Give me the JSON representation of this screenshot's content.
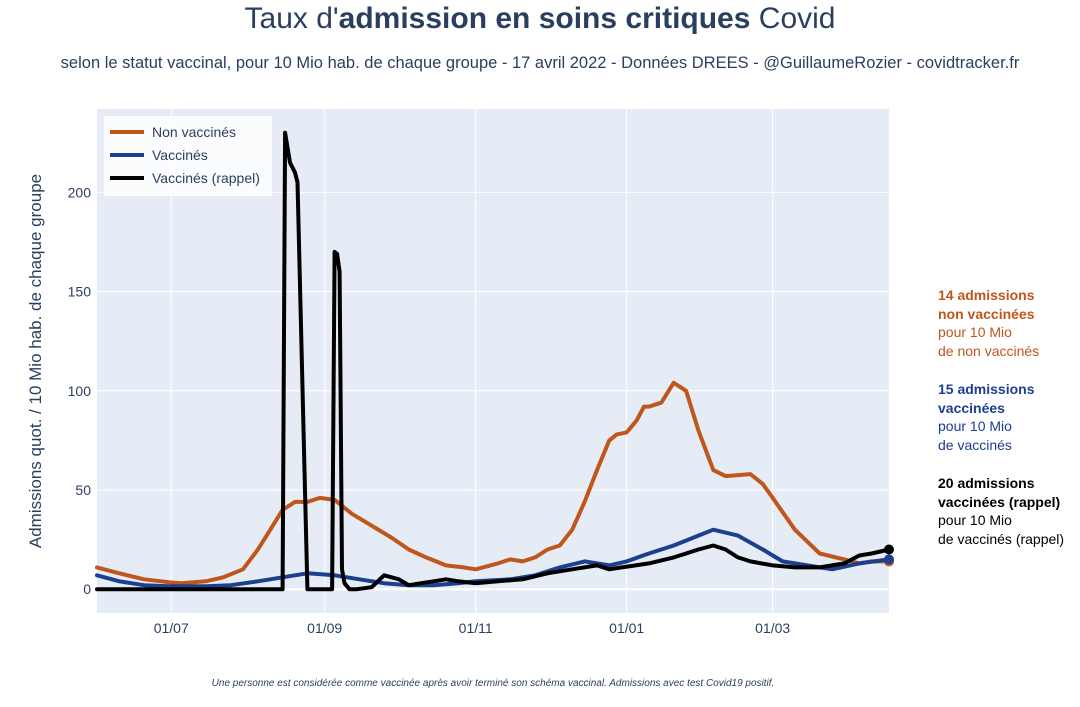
{
  "header": {
    "title_prefix": "Taux d'",
    "title_bold": "admission en soins critiques",
    "title_suffix": " Covid",
    "subtitle": "selon le statut vaccinal, pour 10 Mio hab. de chaque groupe - 17 avril 2022 - Données DREES - @GuillaumeRozier - covidtracker.fr"
  },
  "footnote": "Une personne est considérée comme vaccinée après avoir terminé son schéma vaccinal. Admissions avec test Covid19 positif.",
  "annotations": [
    {
      "bold1": "14 admissions",
      "bold2": "non vaccinées",
      "line1": "pour 10 Mio",
      "line2": "de non vaccinés",
      "color": "#c0561b"
    },
    {
      "bold1": "15 admissions",
      "bold2": "vaccinées",
      "line1": "pour 10 Mio",
      "line2": "de vaccinés",
      "color": "#1c3f8f"
    },
    {
      "bold1": "20 admissions",
      "bold2": "vaccinées (rappel)",
      "line1": "pour 10 Mio",
      "line2": "de vaccinés (rappel)",
      "color": "#000000"
    }
  ],
  "chart_data": {
    "type": "line",
    "title": "Taux d'admission en soins critiques Covid",
    "xlabel": "",
    "ylabel": "Admissions quot. / 10 Mio hab. de chaque groupe",
    "x_domain": [
      "2021-06-01",
      "2022-04-17"
    ],
    "ylim": [
      -12,
      242
    ],
    "x_ticks": [
      {
        "date": "2021-07-01",
        "label": "01/07"
      },
      {
        "date": "2021-09-01",
        "label": "01/09"
      },
      {
        "date": "2021-11-01",
        "label": "01/11"
      },
      {
        "date": "2022-01-01",
        "label": "01/01"
      },
      {
        "date": "2022-03-01",
        "label": "01/03"
      }
    ],
    "y_ticks": [
      0,
      50,
      100,
      150,
      200
    ],
    "grid": true,
    "legend_position": "top-left",
    "plot_background": "#e5ecf6",
    "series": [
      {
        "name": "Non vaccinés",
        "color": "#c0561b",
        "dates": [
          "2021-06-01",
          "2021-06-10",
          "2021-06-20",
          "2021-06-30",
          "2021-07-05",
          "2021-07-15",
          "2021-07-22",
          "2021-07-30",
          "2021-08-05",
          "2021-08-10",
          "2021-08-15",
          "2021-08-20",
          "2021-08-25",
          "2021-08-30",
          "2021-09-05",
          "2021-09-12",
          "2021-09-20",
          "2021-09-28",
          "2021-10-05",
          "2021-10-12",
          "2021-10-20",
          "2021-10-27",
          "2021-11-01",
          "2021-11-10",
          "2021-11-15",
          "2021-11-20",
          "2021-11-25",
          "2021-11-30",
          "2021-12-05",
          "2021-12-10",
          "2021-12-15",
          "2021-12-20",
          "2021-12-25",
          "2021-12-28",
          "2022-01-01",
          "2022-01-05",
          "2022-01-08",
          "2022-01-10",
          "2022-01-15",
          "2022-01-20",
          "2022-01-25",
          "2022-01-30",
          "2022-02-05",
          "2022-02-10",
          "2022-02-20",
          "2022-02-25",
          "2022-03-01",
          "2022-03-10",
          "2022-03-20",
          "2022-03-30",
          "2022-04-05",
          "2022-04-10",
          "2022-04-17"
        ],
        "values": [
          11,
          8,
          5,
          3.5,
          3,
          4,
          6,
          10,
          20,
          30,
          40,
          44,
          44,
          46,
          45,
          38,
          32,
          26,
          20,
          16,
          12,
          11,
          10,
          13,
          15,
          14,
          16,
          20,
          22,
          30,
          44,
          60,
          75,
          78,
          79,
          85,
          92,
          92,
          94,
          104,
          100,
          80,
          60,
          57,
          58,
          53,
          46,
          30,
          18,
          15,
          13,
          14,
          14
        ]
      },
      {
        "name": "Vaccinés",
        "color": "#1c3f8f",
        "dates": [
          "2021-06-01",
          "2021-06-10",
          "2021-06-20",
          "2021-06-30",
          "2021-07-15",
          "2021-07-25",
          "2021-08-05",
          "2021-08-15",
          "2021-08-25",
          "2021-09-05",
          "2021-09-15",
          "2021-09-25",
          "2021-10-05",
          "2021-10-15",
          "2021-10-25",
          "2021-11-01",
          "2021-11-15",
          "2021-11-25",
          "2021-12-05",
          "2021-12-15",
          "2021-12-25",
          "2022-01-01",
          "2022-01-10",
          "2022-01-20",
          "2022-01-30",
          "2022-02-05",
          "2022-02-15",
          "2022-02-25",
          "2022-03-05",
          "2022-03-15",
          "2022-03-25",
          "2022-04-05",
          "2022-04-17"
        ],
        "values": [
          7,
          4,
          2,
          1.5,
          1.5,
          2,
          4,
          6,
          8,
          7,
          5,
          3,
          2,
          2,
          3,
          4,
          5,
          7,
          11,
          14,
          12,
          14,
          18,
          22,
          27,
          30,
          27,
          20,
          14,
          12,
          10,
          13,
          15
        ]
      },
      {
        "name": "Vaccinés (rappel)",
        "color": "#000000",
        "dates": [
          "2021-06-01",
          "2021-08-15",
          "2021-08-16",
          "2021-08-18",
          "2021-08-20",
          "2021-08-21",
          "2021-08-25",
          "2021-08-26",
          "2021-09-01",
          "2021-09-04",
          "2021-09-05",
          "2021-09-06",
          "2021-09-07",
          "2021-09-08",
          "2021-09-09",
          "2021-09-11",
          "2021-09-14",
          "2021-09-20",
          "2021-09-25",
          "2021-10-01",
          "2021-10-05",
          "2021-10-10",
          "2021-10-15",
          "2021-10-20",
          "2021-10-25",
          "2021-11-01",
          "2021-11-10",
          "2021-11-20",
          "2021-11-30",
          "2021-12-10",
          "2021-12-20",
          "2021-12-25",
          "2021-12-30",
          "2022-01-10",
          "2022-01-20",
          "2022-01-25",
          "2022-01-30",
          "2022-02-05",
          "2022-02-10",
          "2022-02-15",
          "2022-02-20",
          "2022-03-01",
          "2022-03-10",
          "2022-03-20",
          "2022-03-30",
          "2022-04-05",
          "2022-04-10",
          "2022-04-17"
        ],
        "values": [
          0,
          0,
          230,
          215,
          210,
          205,
          0,
          0,
          0,
          0,
          170,
          169,
          160,
          10,
          3,
          0,
          0,
          1,
          7,
          5,
          2,
          3,
          4,
          5,
          4,
          3,
          4,
          5,
          8,
          10,
          12,
          10,
          11,
          13,
          16,
          18,
          20,
          22,
          20,
          16,
          14,
          12,
          11,
          11,
          13,
          17,
          18,
          20
        ]
      }
    ]
  }
}
